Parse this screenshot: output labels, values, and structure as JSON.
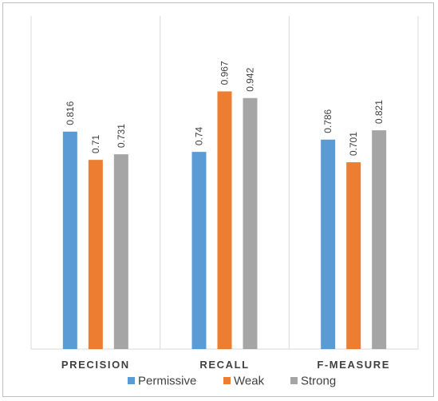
{
  "chart_data": {
    "type": "bar",
    "title": "",
    "xlabel": "",
    "ylabel": "",
    "categories": [
      "PRECISION",
      "RECALL",
      "F-MEASURE"
    ],
    "series": [
      {
        "name": "Permissive",
        "values": [
          0.816,
          0.74,
          0.786
        ],
        "color": "#5b9bd5"
      },
      {
        "name": "Weak",
        "values": [
          0.71,
          0.967,
          0.701
        ],
        "color": "#ed7d31"
      },
      {
        "name": "Strong",
        "values": [
          0.731,
          0.942,
          0.821
        ],
        "color": "#a5a5a5"
      }
    ],
    "ylim": [
      0,
      1.25
    ],
    "grid": false,
    "category_separators": true,
    "legend_position": "bottom",
    "data_labels": true
  }
}
